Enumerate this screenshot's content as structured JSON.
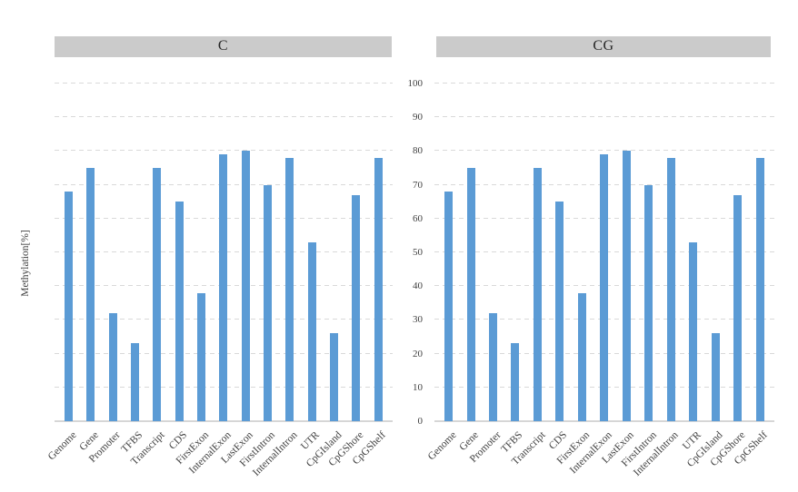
{
  "axis": {
    "ymin": 0,
    "ymax": 100,
    "ytick_step": 10,
    "yticks": [
      0,
      10,
      20,
      30,
      40,
      50,
      60,
      70,
      80,
      90,
      100
    ],
    "ylabel": "Methylation[%]"
  },
  "chart_data": [
    {
      "type": "bar",
      "title": "C",
      "categories": [
        "Genome",
        "Gene",
        "Promoter",
        "TFBS",
        "Transcript",
        "CDS",
        "FirstExon",
        "InternalExon",
        "LastExon",
        "FirstIntron",
        "InternalIntron",
        "UTR",
        "CpGIsland",
        "CpGShore",
        "CpGShelf"
      ],
      "values": [
        68,
        75,
        32,
        23,
        75,
        65,
        38,
        79,
        80,
        70,
        78,
        53,
        26,
        67,
        78
      ],
      "xlabel": "",
      "ylabel": "Methylation[%]",
      "ylim": [
        0,
        100
      ],
      "grid": "dashed-horizontal",
      "legend": "none"
    },
    {
      "type": "bar",
      "title": "CG",
      "categories": [
        "Genome",
        "Gene",
        "Promoter",
        "TFBS",
        "Transcript",
        "CDS",
        "FirstExon",
        "InternalExon",
        "LastExon",
        "FirstIntron",
        "InternalIntron",
        "UTR",
        "CpGIsland",
        "CpGShore",
        "CpGShelf"
      ],
      "values": [
        68,
        75,
        32,
        23,
        75,
        65,
        38,
        79,
        80,
        70,
        78,
        53,
        26,
        67,
        78
      ],
      "xlabel": "",
      "ylabel": "Methylation[%]",
      "ylim": [
        0,
        100
      ],
      "grid": "dashed-horizontal",
      "legend": "none"
    }
  ],
  "colors": {
    "bar": "#5b9bd5",
    "panel_header_bg": "#cbcbcb",
    "gridline": "#d9d9d9",
    "baseline": "#d6d6d6",
    "tick_text": "#404040",
    "title_text": "#262626",
    "background": "#ffffff"
  }
}
